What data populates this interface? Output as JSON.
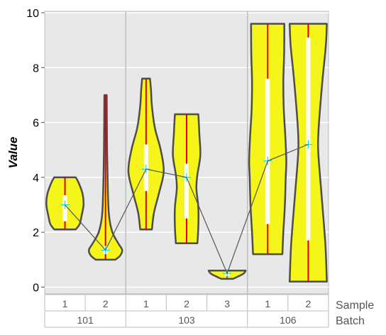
{
  "chart_data": {
    "type": "violin",
    "ylabel": "Value",
    "ylim": [
      -0.3,
      10
    ],
    "yticks": [
      0,
      2,
      4,
      6,
      8,
      10
    ],
    "grid": true,
    "colors": {
      "panel": "#e8e8e8",
      "grid": "#ffffff",
      "violin_fill": "#f5f51a",
      "violin_stroke": "#4d4d4d",
      "range_line": "#e00000",
      "iqr_box": "#ffffff",
      "mean_marker": "#00e5ee",
      "mean_line": "#555555",
      "separator": "#bdbdbd"
    },
    "row_labels": {
      "sample": "Sample",
      "batch": "Batch"
    },
    "batches": [
      {
        "label": "101",
        "samples": [
          "1",
          "2"
        ]
      },
      {
        "label": "103",
        "samples": [
          "1",
          "2",
          "3"
        ]
      },
      {
        "label": "106",
        "samples": [
          "1",
          "2"
        ]
      }
    ],
    "groups": [
      {
        "batch": "101",
        "sample": "1",
        "min": 2.1,
        "q1": 2.4,
        "median": 3.0,
        "q3": 3.35,
        "max": 4.0,
        "mean": 3.0,
        "profile": [
          [
            2.1,
            0.55
          ],
          [
            2.3,
            0.75
          ],
          [
            2.6,
            0.85
          ],
          [
            3.0,
            0.95
          ],
          [
            3.4,
            0.9
          ],
          [
            3.8,
            0.7
          ],
          [
            4.0,
            0.55
          ]
        ]
      },
      {
        "batch": "101",
        "sample": "2",
        "min": 1.0,
        "q1": 1.2,
        "median": 1.35,
        "q3": 1.5,
        "max": 7.0,
        "mean": 1.35,
        "profile": [
          [
            1.0,
            0.5
          ],
          [
            1.15,
            0.75
          ],
          [
            1.35,
            0.85
          ],
          [
            1.6,
            0.65
          ],
          [
            2.0,
            0.35
          ],
          [
            2.6,
            0.18
          ],
          [
            3.5,
            0.12
          ],
          [
            5.0,
            0.08
          ],
          [
            7.0,
            0.06
          ]
        ]
      },
      {
        "batch": "103",
        "sample": "1",
        "min": 2.1,
        "q1": 3.5,
        "median": 4.3,
        "q3": 5.2,
        "max": 7.6,
        "mean": 4.3,
        "profile": [
          [
            2.1,
            0.3
          ],
          [
            2.7,
            0.4
          ],
          [
            3.4,
            0.65
          ],
          [
            4.2,
            0.9
          ],
          [
            5.0,
            0.75
          ],
          [
            5.8,
            0.45
          ],
          [
            6.6,
            0.3
          ],
          [
            7.2,
            0.25
          ],
          [
            7.6,
            0.2
          ]
        ]
      },
      {
        "batch": "103",
        "sample": "2",
        "min": 1.6,
        "q1": 2.5,
        "median": 4.0,
        "q3": 4.5,
        "max": 6.3,
        "mean": 4.0,
        "profile": [
          [
            1.6,
            0.55
          ],
          [
            2.2,
            0.6
          ],
          [
            2.9,
            0.6
          ],
          [
            3.6,
            0.5
          ],
          [
            4.1,
            0.55
          ],
          [
            4.8,
            0.7
          ],
          [
            5.6,
            0.65
          ],
          [
            6.3,
            0.6
          ]
        ]
      },
      {
        "batch": "103",
        "sample": "3",
        "min": 0.3,
        "q1": 0.4,
        "median": 0.5,
        "q3": 0.55,
        "max": 0.6,
        "mean": 0.5,
        "profile": [
          [
            0.3,
            0.3
          ],
          [
            0.4,
            0.6
          ],
          [
            0.5,
            0.85
          ],
          [
            0.6,
            0.95
          ]
        ]
      },
      {
        "batch": "106",
        "sample": "1",
        "min": 1.2,
        "q1": 2.3,
        "median": 4.6,
        "q3": 7.6,
        "max": 9.6,
        "mean": 4.6,
        "profile": [
          [
            1.2,
            0.75
          ],
          [
            2.0,
            0.8
          ],
          [
            3.0,
            0.88
          ],
          [
            4.0,
            0.92
          ],
          [
            4.6,
            0.95
          ],
          [
            5.5,
            0.9
          ],
          [
            6.5,
            0.82
          ],
          [
            7.5,
            0.8
          ],
          [
            8.5,
            0.84
          ],
          [
            9.6,
            0.85
          ]
        ]
      },
      {
        "batch": "106",
        "sample": "2",
        "min": 0.2,
        "q1": 1.7,
        "median": 5.2,
        "q3": 9.1,
        "max": 9.6,
        "mean": 5.2,
        "profile": [
          [
            0.2,
            0.95
          ],
          [
            1.5,
            0.88
          ],
          [
            3.0,
            0.72
          ],
          [
            4.5,
            0.55
          ],
          [
            5.2,
            0.5
          ],
          [
            6.0,
            0.55
          ],
          [
            7.5,
            0.72
          ],
          [
            8.8,
            0.9
          ],
          [
            9.6,
            0.95
          ]
        ]
      }
    ]
  }
}
